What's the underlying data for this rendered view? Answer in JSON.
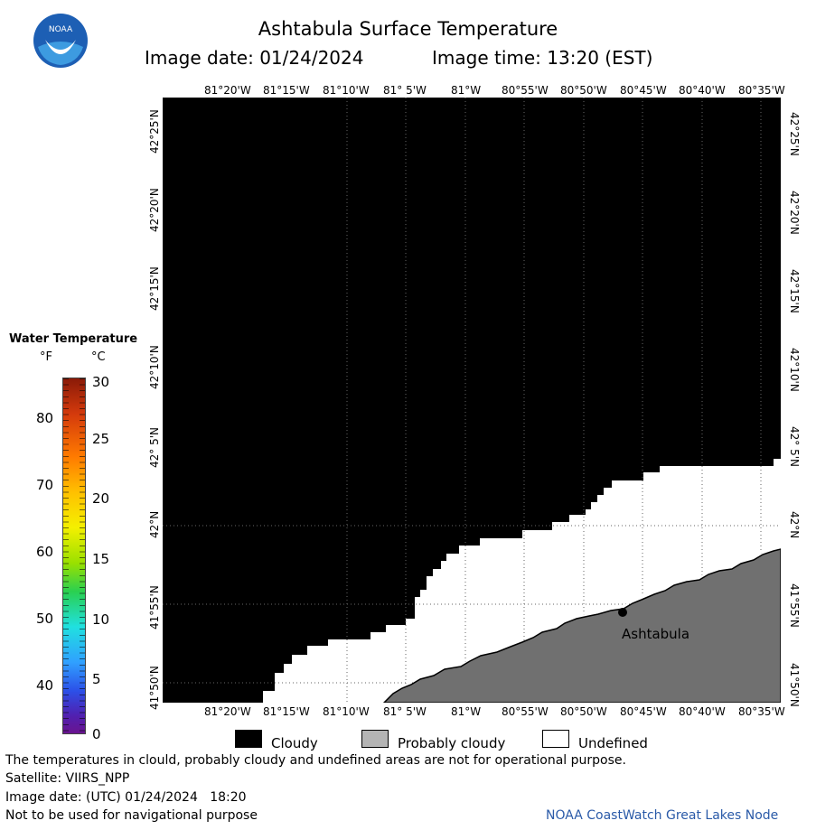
{
  "header": {
    "logo_text": "NOAA",
    "title": "Ashtabula Surface Temperature",
    "image_date": "Image date: 01/24/2024",
    "image_time": "Image time: 13:20 (EST)"
  },
  "map": {
    "lon_labels": [
      "81°20'W",
      "81°15'W",
      "81°10'W",
      "81° 5'W",
      "81°W",
      "80°55'W",
      "80°50'W",
      "80°45'W",
      "80°40'W",
      "80°35'W"
    ],
    "lat_labels": [
      "42°25'N",
      "42°20'N",
      "42°15'N",
      "42°10'N",
      "42° 5'N",
      "42°N",
      "41°55'N",
      "41°50'N"
    ],
    "city_label": "Ashtabula"
  },
  "legend": {
    "title": "Water Temperature",
    "unit_f": "°F",
    "unit_c": "°C",
    "f_ticks": [
      "80",
      "70",
      "60",
      "50",
      "40"
    ],
    "c_ticks": [
      "30",
      "25",
      "20",
      "15",
      "10",
      "5",
      "0"
    ]
  },
  "key": {
    "cloudy": "Cloudy",
    "probably_cloudy": "Probably cloudy",
    "undefined": "Undefined",
    "cloudy_color": "#000000",
    "probably_cloudy_color": "#b4b4b4",
    "undefined_color": "#ffffff"
  },
  "footer": {
    "note": "The temperatures in clould, probably cloudy and undefined areas are not for operational purpose.",
    "satellite": "Satellite: VIIRS_NPP",
    "utc_date": "Image date: (UTC) 01/24/2024   18:20",
    "nav_warning": "Not to be used for navigational purpose",
    "credit": "NOAA CoastWatch Great Lakes Node"
  }
}
